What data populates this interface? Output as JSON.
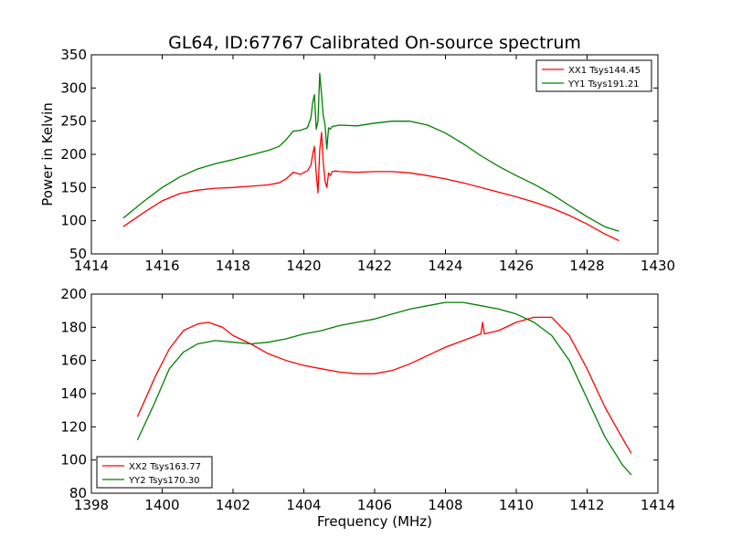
{
  "figure": {
    "title": "GL64, ID:67767 Calibrated On-source spectrum"
  },
  "chart_data": [
    {
      "type": "line",
      "title": "GL64, ID:67767 Calibrated On-source spectrum",
      "xlabel": "",
      "ylabel": "Power in Kelvin",
      "xlim": [
        1414,
        1430
      ],
      "ylim": [
        50,
        350
      ],
      "xticks": [
        "1414",
        "1416",
        "1418",
        "1420",
        "1422",
        "1424",
        "1426",
        "1428",
        "1430"
      ],
      "yticks": [
        "50",
        "100",
        "150",
        "200",
        "250",
        "300",
        "350"
      ],
      "grid": false,
      "legend_position": "top-right",
      "series": [
        {
          "name": "XX1 Tsys144.45",
          "color": "#ff0000",
          "x": [
            1414.9,
            1415.5,
            1416.0,
            1416.5,
            1417.0,
            1417.5,
            1418.0,
            1418.5,
            1419.0,
            1419.3,
            1419.5,
            1419.7,
            1419.9,
            1420.1,
            1420.2,
            1420.25,
            1420.3,
            1420.35,
            1420.4,
            1420.45,
            1420.5,
            1420.55,
            1420.6,
            1420.65,
            1420.7,
            1420.75,
            1420.8,
            1420.9,
            1421.0,
            1421.5,
            1422.0,
            1422.5,
            1423.0,
            1423.5,
            1424.0,
            1424.5,
            1425.0,
            1425.5,
            1426.0,
            1426.5,
            1427.0,
            1427.5,
            1428.0,
            1428.5,
            1428.9
          ],
          "values": [
            91,
            113,
            130,
            141,
            146,
            149,
            150,
            152,
            154,
            157,
            163,
            173,
            170,
            175,
            184,
            200,
            212,
            170,
            142,
            206,
            233,
            188,
            160,
            150,
            172,
            168,
            174,
            175,
            174,
            173,
            174,
            174,
            172,
            168,
            163,
            157,
            150,
            143,
            136,
            128,
            119,
            108,
            95,
            80,
            70
          ]
        },
        {
          "name": "YY1 Tsys191.21",
          "color": "#008000",
          "x": [
            1414.9,
            1415.5,
            1416.0,
            1416.5,
            1417.0,
            1417.5,
            1418.0,
            1418.5,
            1419.0,
            1419.3,
            1419.5,
            1419.7,
            1419.9,
            1420.1,
            1420.2,
            1420.25,
            1420.3,
            1420.35,
            1420.4,
            1420.45,
            1420.5,
            1420.55,
            1420.6,
            1420.65,
            1420.7,
            1420.75,
            1420.8,
            1420.9,
            1421.0,
            1421.5,
            1422.0,
            1422.5,
            1423.0,
            1423.5,
            1424.0,
            1424.5,
            1425.0,
            1425.5,
            1426.0,
            1426.5,
            1427.0,
            1427.5,
            1428.0,
            1428.5,
            1428.9
          ],
          "values": [
            104,
            130,
            150,
            166,
            178,
            186,
            192,
            199,
            206,
            212,
            222,
            235,
            236,
            240,
            255,
            278,
            290,
            238,
            250,
            322,
            290,
            258,
            245,
            208,
            240,
            238,
            242,
            243,
            244,
            243,
            247,
            250,
            250,
            244,
            232,
            216,
            198,
            182,
            168,
            155,
            140,
            123,
            106,
            91,
            84
          ]
        }
      ]
    },
    {
      "type": "line",
      "title": "",
      "xlabel": "Frequency (MHz)",
      "ylabel": "",
      "xlim": [
        1398,
        1414
      ],
      "ylim": [
        80,
        200
      ],
      "xticks": [
        "1398",
        "1400",
        "1402",
        "1404",
        "1406",
        "1408",
        "1410",
        "1412",
        "1414"
      ],
      "yticks": [
        "80",
        "100",
        "120",
        "140",
        "160",
        "180",
        "200"
      ],
      "grid": false,
      "legend_position": "bottom-left",
      "series": [
        {
          "name": "XX2 Tsys163.77",
          "color": "#ff0000",
          "x": [
            1399.3,
            1399.8,
            1400.2,
            1400.6,
            1401.0,
            1401.3,
            1401.7,
            1402.0,
            1402.5,
            1403.0,
            1403.5,
            1404.0,
            1404.5,
            1405.0,
            1405.5,
            1406.0,
            1406.5,
            1407.0,
            1407.5,
            1408.0,
            1408.5,
            1409.0,
            1409.05,
            1409.1,
            1409.5,
            1410.0,
            1410.5,
            1411.0,
            1411.5,
            1412.0,
            1412.5,
            1413.0,
            1413.25
          ],
          "values": [
            126,
            150,
            167,
            178,
            182,
            183,
            180,
            175,
            170,
            164,
            160,
            157,
            155,
            153,
            152,
            152,
            154,
            158,
            163,
            168,
            172,
            176,
            183,
            176,
            178,
            183,
            186,
            186,
            175,
            155,
            132,
            113,
            104
          ]
        },
        {
          "name": "YY2 Tsys170.30",
          "color": "#008000",
          "x": [
            1399.3,
            1399.8,
            1400.2,
            1400.6,
            1401.0,
            1401.5,
            1402.0,
            1402.5,
            1403.0,
            1403.5,
            1404.0,
            1404.5,
            1405.0,
            1405.5,
            1406.0,
            1406.5,
            1407.0,
            1407.5,
            1408.0,
            1408.5,
            1409.0,
            1409.5,
            1410.0,
            1410.5,
            1411.0,
            1411.5,
            1412.0,
            1412.5,
            1413.0,
            1413.25
          ],
          "values": [
            112,
            135,
            155,
            165,
            170,
            172,
            171,
            170,
            171,
            173,
            176,
            178,
            181,
            183,
            185,
            188,
            191,
            193,
            195,
            195,
            193,
            191,
            188,
            183,
            175,
            160,
            137,
            114,
            97,
            91
          ]
        }
      ]
    }
  ]
}
